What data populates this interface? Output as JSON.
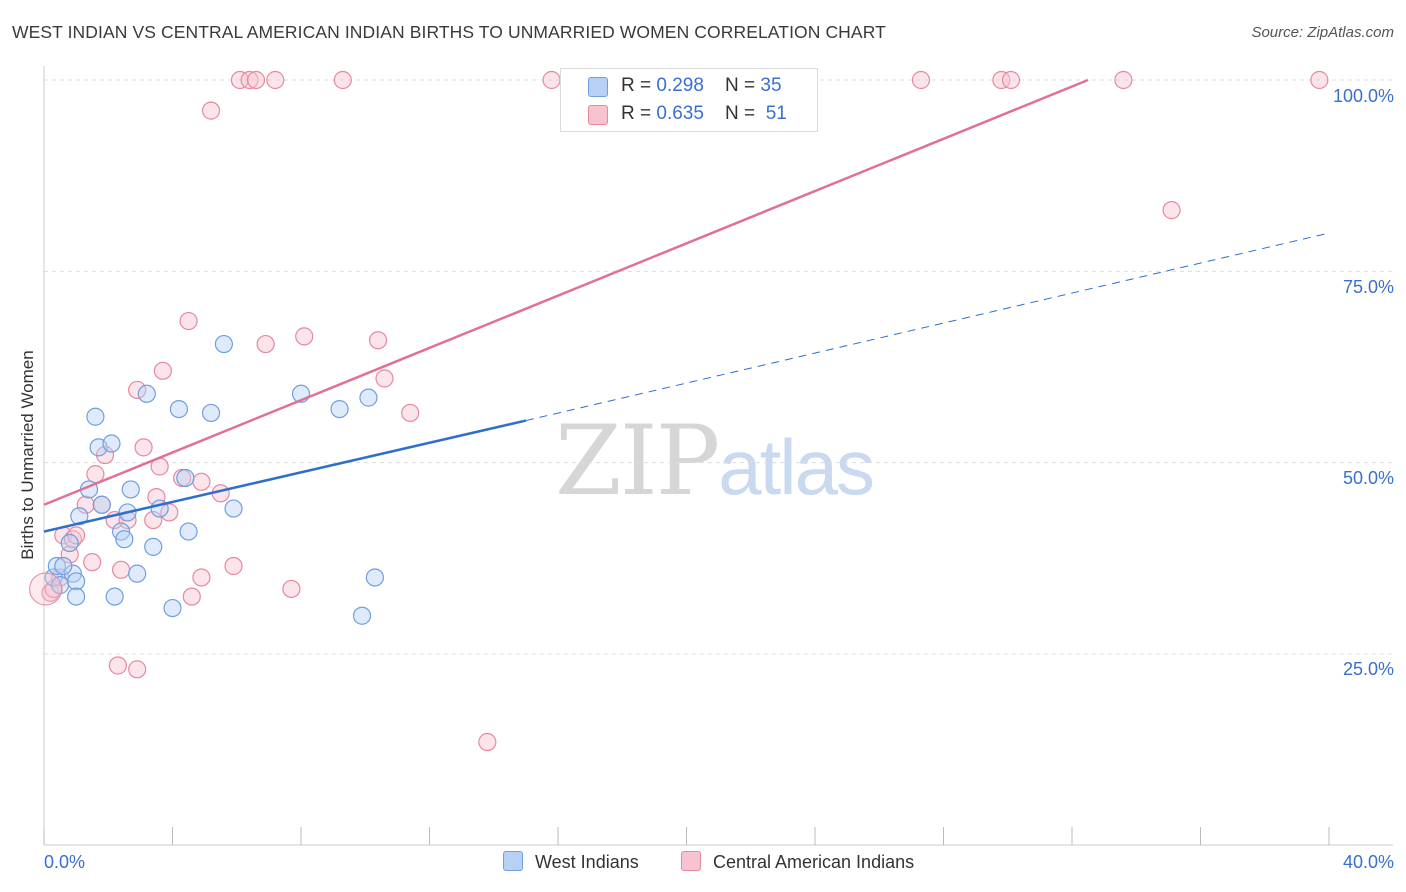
{
  "title": "WEST INDIAN VS CENTRAL AMERICAN INDIAN BIRTHS TO UNMARRIED WOMEN CORRELATION CHART",
  "source": "Source: ZipAtlas.com",
  "watermark": {
    "zip": "ZIP",
    "atlas": "atlas"
  },
  "colors": {
    "blue": "#6f9fe0",
    "blue_fill": "#b8d0f3",
    "blue_line": "#2f6fcc",
    "pink": "#e8889f",
    "pink_fill": "#f6c3d1",
    "pink_line": "#e07095",
    "tick_text": "#3a6fd0",
    "grid": "#dddddd"
  },
  "legend": {
    "rows": [
      {
        "r_label": "R = ",
        "r_value": "0.298",
        "n_label": "N = ",
        "n_value": "35"
      },
      {
        "r_label": "R = ",
        "r_value": "0.635",
        "n_label": "N = ",
        "n_value": "51"
      }
    ]
  },
  "bottom_legend": [
    "West Indians",
    "Central American Indians"
  ],
  "chart_data": {
    "type": "scatter",
    "title": "WEST INDIAN VS CENTRAL AMERICAN INDIAN BIRTHS TO UNMARRIED WOMEN CORRELATION CHART",
    "xlabel": "",
    "ylabel": "Births to Unmarried Women",
    "xlim": [
      0,
      40
    ],
    "ylim": [
      0,
      102
    ],
    "x_tick_labels": [
      "0.0%",
      "40.0%"
    ],
    "y_ticks": [
      25,
      50,
      75,
      100
    ],
    "y_tick_labels": [
      "25.0%",
      "50.0%",
      "75.0%",
      "100.0%"
    ],
    "grid": true,
    "legend_position": "top-center",
    "series": [
      {
        "name": "West Indians",
        "color": "#6f9fe0",
        "r": 0.298,
        "n": 35,
        "trend": {
          "x": [
            0,
            15
          ],
          "y": [
            41,
            55.5
          ],
          "dashed_extension_to": [
            40,
            80
          ]
        },
        "points": [
          [
            0.3,
            35
          ],
          [
            0.4,
            36.5
          ],
          [
            0.5,
            34
          ],
          [
            0.8,
            39.5
          ],
          [
            0.9,
            35.5
          ],
          [
            1.0,
            34.5
          ],
          [
            1.0,
            32.5
          ],
          [
            1.1,
            43
          ],
          [
            1.4,
            46.5
          ],
          [
            1.6,
            56
          ],
          [
            1.7,
            52
          ],
          [
            1.8,
            44.5
          ],
          [
            2.1,
            52.5
          ],
          [
            2.2,
            32.5
          ],
          [
            2.4,
            41
          ],
          [
            2.5,
            40
          ],
          [
            2.6,
            43.5
          ],
          [
            2.7,
            46.5
          ],
          [
            2.9,
            35.5
          ],
          [
            3.2,
            59
          ],
          [
            3.4,
            39
          ],
          [
            3.6,
            44
          ],
          [
            4.0,
            31
          ],
          [
            4.2,
            57
          ],
          [
            4.4,
            48
          ],
          [
            4.5,
            41
          ],
          [
            5.2,
            56.5
          ],
          [
            5.6,
            65.5
          ],
          [
            5.9,
            44
          ],
          [
            8.0,
            59
          ],
          [
            9.2,
            57
          ],
          [
            10.1,
            58.5
          ],
          [
            10.3,
            35
          ],
          [
            9.9,
            30
          ],
          [
            0.6,
            36.5
          ]
        ]
      },
      {
        "name": "Central American Indians",
        "color": "#e8889f",
        "r": 0.635,
        "n": 51,
        "trend": {
          "x": [
            0,
            32.5
          ],
          "y": [
            44.5,
            100
          ]
        },
        "points": [
          [
            0.2,
            33
          ],
          [
            0.3,
            33.5
          ],
          [
            0.5,
            35
          ],
          [
            0.6,
            40.5
          ],
          [
            0.8,
            38
          ],
          [
            0.9,
            40
          ],
          [
            1.0,
            40.5
          ],
          [
            1.3,
            44.5
          ],
          [
            1.5,
            37
          ],
          [
            1.6,
            48.5
          ],
          [
            1.8,
            44.5
          ],
          [
            1.9,
            51
          ],
          [
            2.2,
            42.5
          ],
          [
            2.3,
            23.5
          ],
          [
            2.4,
            36
          ],
          [
            2.6,
            42.5
          ],
          [
            2.9,
            59.5
          ],
          [
            2.9,
            23
          ],
          [
            3.1,
            52
          ],
          [
            3.4,
            42.5
          ],
          [
            3.5,
            45.5
          ],
          [
            3.6,
            49.5
          ],
          [
            3.7,
            62
          ],
          [
            3.9,
            43.5
          ],
          [
            4.3,
            48
          ],
          [
            4.5,
            68.5
          ],
          [
            4.6,
            32.5
          ],
          [
            4.9,
            47.5
          ],
          [
            4.9,
            35
          ],
          [
            5.2,
            96
          ],
          [
            5.5,
            46
          ],
          [
            5.9,
            36.5
          ],
          [
            6.1,
            100
          ],
          [
            6.4,
            100
          ],
          [
            6.6,
            100
          ],
          [
            6.9,
            65.5
          ],
          [
            7.2,
            100
          ],
          [
            7.7,
            33.5
          ],
          [
            8.1,
            66.5
          ],
          [
            9.3,
            100
          ],
          [
            10.4,
            66
          ],
          [
            10.6,
            61
          ],
          [
            11.4,
            56.5
          ],
          [
            13.8,
            13.5
          ],
          [
            15.8,
            100
          ],
          [
            27.3,
            100
          ],
          [
            29.8,
            100
          ],
          [
            30.1,
            100
          ],
          [
            33.6,
            100
          ],
          [
            35.1,
            83
          ],
          [
            39.7,
            100
          ]
        ]
      }
    ]
  }
}
